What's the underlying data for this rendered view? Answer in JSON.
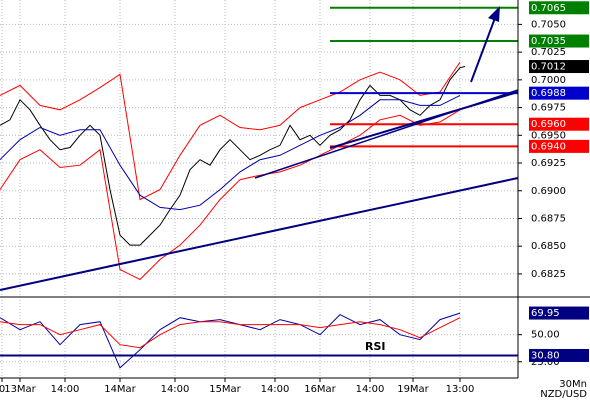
{
  "chart_data": [
    {
      "type": "line",
      "xlim": [
        0,
        129.5
      ],
      "ylim": [
        0.6806,
        0.7072
      ],
      "yticks": [
        {
          "value": 0.705,
          "label": "0.7050"
        },
        0.7025,
        {
          "value": 0.7,
          "label": "0.7000"
        },
        0.6975,
        {
          "value": 0.695,
          "label": "0.6950"
        },
        0.6925,
        {
          "value": 0.69,
          "label": "0.6900"
        },
        0.6875,
        {
          "value": 0.685,
          "label": "0.6850"
        },
        0.6825
      ],
      "grid": true,
      "series": [
        {
          "color": "#000000",
          "x": [
            0,
            2.5,
            5,
            7.5,
            10,
            12.5,
            15,
            17.5,
            20,
            22.5,
            25,
            27.5,
            30,
            32.5,
            35,
            37.5,
            40,
            42.5,
            45,
            47.5,
            50,
            52.5,
            55,
            57.5,
            60,
            62.5,
            65,
            67.5,
            70,
            72.5,
            75,
            77.5,
            80,
            82.5,
            85,
            87.5,
            90,
            92.5,
            95,
            97.5,
            100,
            102.5,
            105,
            107.5,
            110,
            112.5,
            115,
            116.25
          ],
          "values": [
            0.6959,
            0.6964,
            0.6982,
            0.6973,
            0.6959,
            0.6946,
            0.6937,
            0.6939,
            0.695,
            0.6959,
            0.695,
            0.6901,
            0.686,
            0.6851,
            0.6851,
            0.686,
            0.6869,
            0.6883,
            0.6896,
            0.6919,
            0.6928,
            0.6923,
            0.6937,
            0.6946,
            0.6937,
            0.6928,
            0.6932,
            0.6937,
            0.6941,
            0.6959,
            0.6946,
            0.695,
            0.6941,
            0.695,
            0.6955,
            0.6964,
            0.6982,
            0.6995,
            0.6986,
            0.6986,
            0.6982,
            0.6973,
            0.6968,
            0.6977,
            0.6982,
            0.7,
            0.7011,
            0.7012
          ]
        },
        {
          "color": "#ff0000",
          "x": [
            0,
            5,
            10,
            15,
            20,
            25,
            30,
            35,
            40,
            45,
            50,
            55,
            60,
            65,
            70,
            75,
            80,
            85,
            90,
            95,
            100,
            105,
            110,
            115
          ],
          "values": [
            0.6986,
            0.6995,
            0.6977,
            0.6973,
            0.6982,
            0.6993,
            0.7005,
            0.6892,
            0.6901,
            0.6932,
            0.6959,
            0.6968,
            0.6957,
            0.6955,
            0.6959,
            0.6975,
            0.6982,
            0.6989,
            0.7,
            0.7007,
            0.7,
            0.6986,
            0.6989,
            0.7016
          ]
        },
        {
          "color": "#ff0000",
          "x": [
            0,
            5,
            10,
            15,
            20,
            25,
            30,
            35,
            40,
            45,
            50,
            55,
            60,
            65,
            70,
            75,
            80,
            85,
            90,
            95,
            100,
            105,
            110,
            115
          ],
          "values": [
            0.6901,
            0.6928,
            0.6937,
            0.6921,
            0.6923,
            0.6937,
            0.6829,
            0.682,
            0.6838,
            0.6851,
            0.6869,
            0.6892,
            0.691,
            0.6914,
            0.6917,
            0.6923,
            0.6932,
            0.6941,
            0.695,
            0.6964,
            0.6968,
            0.6959,
            0.6962,
            0.6973
          ]
        },
        {
          "color": "#0000aa",
          "x": [
            0,
            5,
            10,
            15,
            20,
            25,
            30,
            35,
            40,
            45,
            50,
            55,
            60,
            65,
            70,
            75,
            80,
            85,
            90,
            95,
            100,
            105,
            110,
            115
          ],
          "values": [
            0.6928,
            0.6946,
            0.6957,
            0.695,
            0.6955,
            0.6955,
            0.6923,
            0.6896,
            0.6885,
            0.6883,
            0.6887,
            0.6901,
            0.6917,
            0.6928,
            0.6932,
            0.6941,
            0.695,
            0.6957,
            0.6968,
            0.6982,
            0.6982,
            0.6977,
            0.6977,
            0.6986
          ]
        }
      ],
      "levels": [
        {
          "value": 0.7065,
          "color": "#008000",
          "line": true
        },
        {
          "value": 0.7035,
          "color": "#008000",
          "line": true
        },
        {
          "value": 0.7012,
          "color": "#000000",
          "line": false
        },
        {
          "value": 0.6988,
          "color": "#0000cc",
          "line": true
        },
        {
          "value": 0.696,
          "label": "0.6960",
          "color": "#ff0000",
          "line": true
        },
        {
          "value": 0.694,
          "label": "0.6940",
          "color": "#ff0000",
          "line": true
        }
      ]
    },
    {
      "type": "line",
      "title": "RSI",
      "xlim": [
        0,
        129.5
      ],
      "ylim": [
        10,
        82
      ],
      "yticks": [
        {
          "value": 50,
          "label": "50.00"
        },
        {
          "value": 25,
          "label": "25.00"
        }
      ],
      "xticks": [
        {
          "value": 0.5,
          "label": "0"
        },
        {
          "value": 5,
          "label": "13Mar"
        },
        {
          "value": 16.25,
          "label": "14:00"
        },
        {
          "value": 30,
          "label": "14Mar"
        },
        {
          "value": 43.75,
          "label": "14:00"
        },
        {
          "value": 56.25,
          "label": "15Mar"
        },
        {
          "value": 68.75,
          "label": "14:00"
        },
        {
          "value": 80,
          "label": "16Mar"
        },
        {
          "value": 92.5,
          "label": "14:00"
        },
        {
          "value": 103.25,
          "label": "19Mar"
        },
        {
          "value": 115,
          "label": "13:00"
        }
      ],
      "grid": true,
      "series": [
        {
          "color": "#0000aa",
          "x": [
            0,
            5,
            10,
            15,
            20,
            25,
            30,
            35,
            40,
            45,
            50,
            55,
            60,
            65,
            70,
            75,
            80,
            85,
            90,
            95,
            100,
            105,
            110,
            115
          ],
          "values": [
            65.7,
            54.6,
            62,
            40.7,
            59.3,
            62,
            19.4,
            36,
            54.6,
            65.7,
            62,
            63.9,
            59.3,
            54.6,
            63.9,
            59.3,
            50,
            68.5,
            59.3,
            63.9,
            50,
            45.4,
            63.9,
            69.95
          ]
        },
        {
          "color": "#ff0000",
          "x": [
            0,
            5,
            10,
            15,
            20,
            25,
            30,
            35,
            40,
            45,
            50,
            55,
            60,
            65,
            70,
            75,
            80,
            85,
            90,
            95,
            100,
            105,
            110,
            115
          ],
          "values": [
            62,
            59.3,
            59.3,
            50,
            54.6,
            59.3,
            40.7,
            38,
            50,
            59.3,
            62,
            62,
            59.3,
            59.3,
            59.3,
            59.3,
            56.5,
            59.3,
            62,
            59.3,
            54.6,
            47.2,
            56.5,
            65.7
          ]
        }
      ],
      "levels": [
        {
          "value": 69.95,
          "color": "#000080",
          "line": false
        },
        {
          "value": 30.8,
          "label": "30.80",
          "color": "#000080",
          "line": true
        }
      ],
      "timeframe": "30Mn",
      "symbol": "NZD/USD"
    }
  ]
}
